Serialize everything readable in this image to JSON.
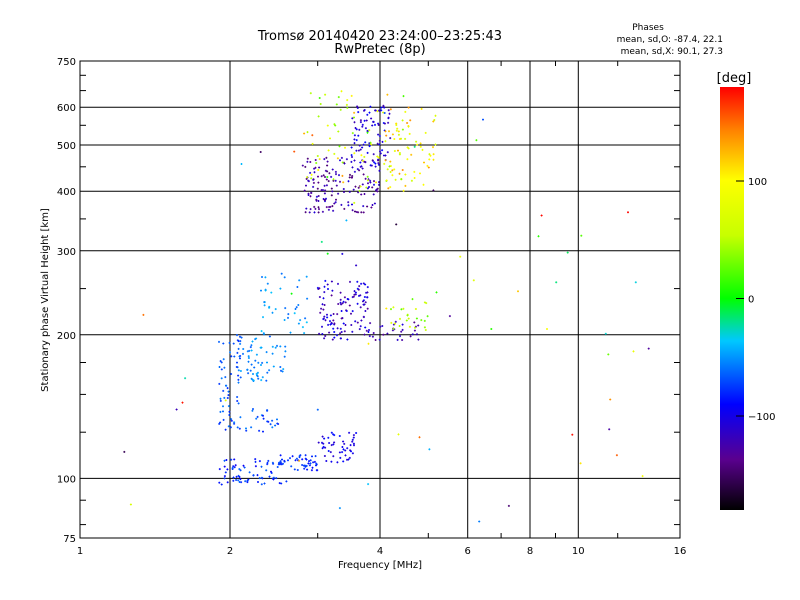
{
  "chart_data": {
    "type": "scatter",
    "title": "Tromsø 20140420 23:24:00–23:25:43",
    "subtitle": "RwPretec (8p)",
    "stats": {
      "header": "Phases",
      "line_o": "mean, sd,O: -87.4, 22.1",
      "line_x": "mean, sd,X:  90.1, 27.3"
    },
    "xlabel": "Frequency [MHz]",
    "ylabel": "Stationary phase Virtual Height [km]",
    "x_scale": "log2",
    "y_scale": "log",
    "xlim": [
      1,
      16
    ],
    "ylim": [
      75,
      750
    ],
    "x_ticks": [
      1,
      2,
      4,
      6,
      8,
      10,
      16
    ],
    "x_tick_labels": [
      "1",
      "2",
      "4",
      "6",
      "8",
      "10",
      "16"
    ],
    "y_ticks": [
      75,
      100,
      200,
      300,
      400,
      500,
      600,
      750
    ],
    "y_tick_labels": [
      "75",
      "100",
      "200",
      "300",
      "400",
      "500",
      "600",
      "750"
    ],
    "grid": true,
    "colorbar": {
      "label": "[deg]",
      "range": [
        -180,
        180
      ],
      "ticks": [
        100,
        0,
        -100
      ],
      "tick_labels": [
        "100",
        "0",
        "−100"
      ]
    },
    "clusters": [
      {
        "fmin": 1.9,
        "fmax": 2.6,
        "hmin": 97,
        "hmax": 110,
        "phase_min": -105,
        "phase_max": -70,
        "n": 70
      },
      {
        "fmin": 2.5,
        "fmax": 3.0,
        "hmin": 104,
        "hmax": 112,
        "phase_min": -100,
        "phase_max": -75,
        "n": 50
      },
      {
        "fmin": 3.0,
        "fmax": 3.6,
        "hmin": 108,
        "hmax": 125,
        "phase_min": -120,
        "phase_max": -95,
        "n": 50
      },
      {
        "fmin": 1.9,
        "fmax": 2.5,
        "hmin": 125,
        "hmax": 140,
        "phase_min": -95,
        "phase_max": -60,
        "n": 40
      },
      {
        "fmin": 1.9,
        "fmax": 2.1,
        "hmin": 140,
        "hmax": 200,
        "phase_min": -90,
        "phase_max": -60,
        "n": 50
      },
      {
        "fmin": 2.1,
        "fmax": 2.6,
        "hmin": 160,
        "hmax": 200,
        "phase_min": -75,
        "phase_max": -45,
        "n": 60
      },
      {
        "fmin": 2.3,
        "fmax": 2.9,
        "hmin": 200,
        "hmax": 270,
        "phase_min": -70,
        "phase_max": -40,
        "n": 40
      },
      {
        "fmin": 3.0,
        "fmax": 3.8,
        "hmin": 195,
        "hmax": 260,
        "phase_min": -140,
        "phase_max": -100,
        "n": 120
      },
      {
        "fmin": 3.8,
        "fmax": 4.8,
        "hmin": 195,
        "hmax": 215,
        "phase_min": -145,
        "phase_max": -110,
        "n": 30
      },
      {
        "fmin": 4.2,
        "fmax": 5.0,
        "hmin": 200,
        "hmax": 240,
        "phase_min": 20,
        "phase_max": 80,
        "n": 25
      },
      {
        "fmin": 2.8,
        "fmax": 4.0,
        "hmin": 360,
        "hmax": 470,
        "phase_min": -150,
        "phase_max": -110,
        "n": 160
      },
      {
        "fmin": 3.5,
        "fmax": 4.2,
        "hmin": 450,
        "hmax": 610,
        "phase_min": -130,
        "phase_max": -95,
        "n": 90
      },
      {
        "fmin": 2.8,
        "fmax": 4.5,
        "hmin": 400,
        "hmax": 650,
        "phase_min": 10,
        "phase_max": 130,
        "n": 80
      },
      {
        "fmin": 4.0,
        "fmax": 5.2,
        "hmin": 400,
        "hmax": 600,
        "phase_min": 50,
        "phase_max": 140,
        "n": 60
      },
      {
        "fmin": 1.2,
        "fmax": 14.0,
        "hmin": 80,
        "hmax": 600,
        "phase_min": -180,
        "phase_max": 180,
        "n": 60
      }
    ]
  }
}
